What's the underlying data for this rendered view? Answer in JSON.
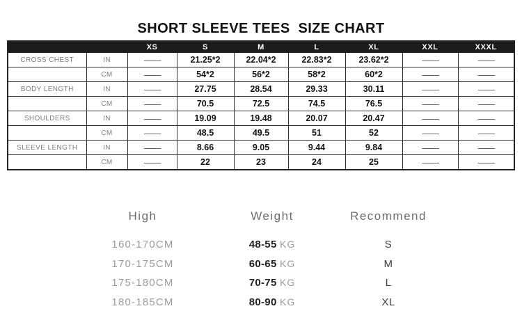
{
  "title": "SHORT SLEEVE TEES  SIZE CHART",
  "accent_colors": {
    "header_bar": "#1c1c1c",
    "grid_line": "#2e2e2e",
    "muted_text": "#9b9b9b"
  },
  "size_chart": {
    "columns": [
      "",
      "",
      "XS",
      "S",
      "M",
      "L",
      "XL",
      "XXL",
      "XXXL"
    ],
    "rows": [
      {
        "label": "CROSS CHEST",
        "unit": "IN",
        "values": [
          "——",
          "21.25*2",
          "22.04*2",
          "22.83*2",
          "23.62*2",
          "——",
          "——"
        ]
      },
      {
        "label": "",
        "unit": "CM",
        "values": [
          "——",
          "54*2",
          "56*2",
          "58*2",
          "60*2",
          "——",
          "——"
        ]
      },
      {
        "label": "BODY LENGTH",
        "unit": "IN",
        "values": [
          "——",
          "27.75",
          "28.54",
          "29.33",
          "30.11",
          "——",
          "——"
        ]
      },
      {
        "label": "",
        "unit": "CM",
        "values": [
          "——",
          "70.5",
          "72.5",
          "74.5",
          "76.5",
          "——",
          "——"
        ]
      },
      {
        "label": "SHOULDERS",
        "unit": "IN",
        "values": [
          "——",
          "19.09",
          "19.48",
          "20.07",
          "20.47",
          "——",
          "——"
        ]
      },
      {
        "label": "",
        "unit": "CM",
        "values": [
          "——",
          "48.5",
          "49.5",
          "51",
          "52",
          "——",
          "——"
        ]
      },
      {
        "label": "SLEEVE LENGTH",
        "unit": "IN",
        "values": [
          "——",
          "8.66",
          "9.05",
          "9.44",
          "9.84",
          "——",
          "——"
        ]
      },
      {
        "label": "",
        "unit": "CM",
        "values": [
          "——",
          "22",
          "23",
          "24",
          "25",
          "——",
          "——"
        ]
      }
    ]
  },
  "fit_guide": {
    "headers": {
      "high": "High",
      "weight": "Weight",
      "recommend": "Recommend"
    },
    "rows": [
      {
        "high": "160-170CM",
        "weight": "48-55",
        "weight_unit": "KG",
        "recommend": "S"
      },
      {
        "high": "170-175CM",
        "weight": "60-65",
        "weight_unit": "KG",
        "recommend": "M"
      },
      {
        "high": "175-180CM",
        "weight": "70-75",
        "weight_unit": "KG",
        "recommend": "L"
      },
      {
        "high": "180-185CM",
        "weight": "80-90",
        "weight_unit": "KG",
        "recommend": "XL"
      }
    ]
  }
}
